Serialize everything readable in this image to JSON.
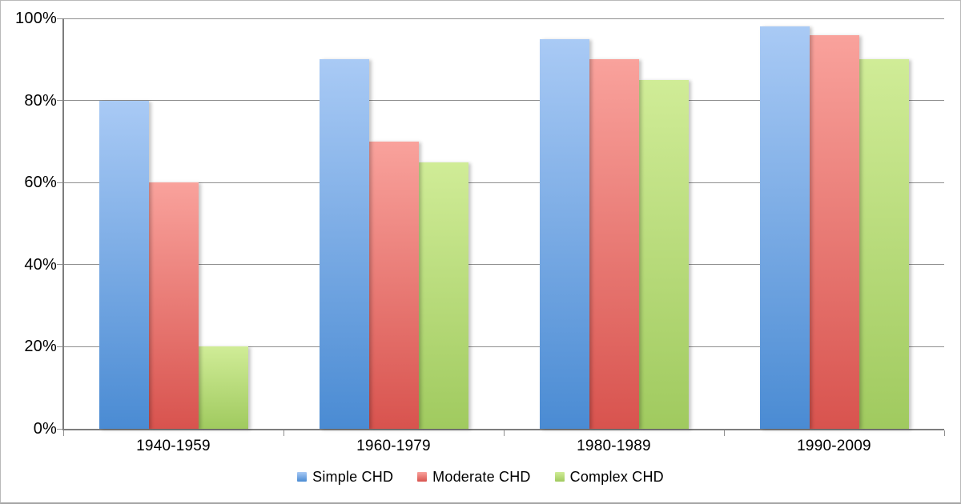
{
  "chart_data": {
    "type": "bar",
    "categories": [
      "1940-1959",
      "1960-1979",
      "1980-1989",
      "1990-2009"
    ],
    "series": [
      {
        "name": "Simple CHD",
        "values": [
          80,
          90,
          95,
          98
        ],
        "color_top": "#A9CAF5",
        "color_bottom": "#4A8BD3"
      },
      {
        "name": "Moderate CHD",
        "values": [
          60,
          70,
          90,
          96
        ],
        "color_top": "#F9A29C",
        "color_bottom": "#D8534E"
      },
      {
        "name": "Complex CHD",
        "values": [
          20,
          65,
          85,
          90
        ],
        "color_top": "#D0EC97",
        "color_bottom": "#A0CA5F"
      }
    ],
    "y_ticks": [
      "0%",
      "20%",
      "40%",
      "60%",
      "80%",
      "100%"
    ],
    "ylim": [
      0,
      100
    ],
    "grid": true,
    "legend_position": "bottom",
    "title": "",
    "xlabel": "",
    "ylabel": ""
  },
  "colors": {
    "gridline": "#8f8f8f",
    "axis": "#7d7d7d",
    "text": "#000000",
    "frame_border": "#b9b9b9",
    "background": "#ffffff"
  }
}
